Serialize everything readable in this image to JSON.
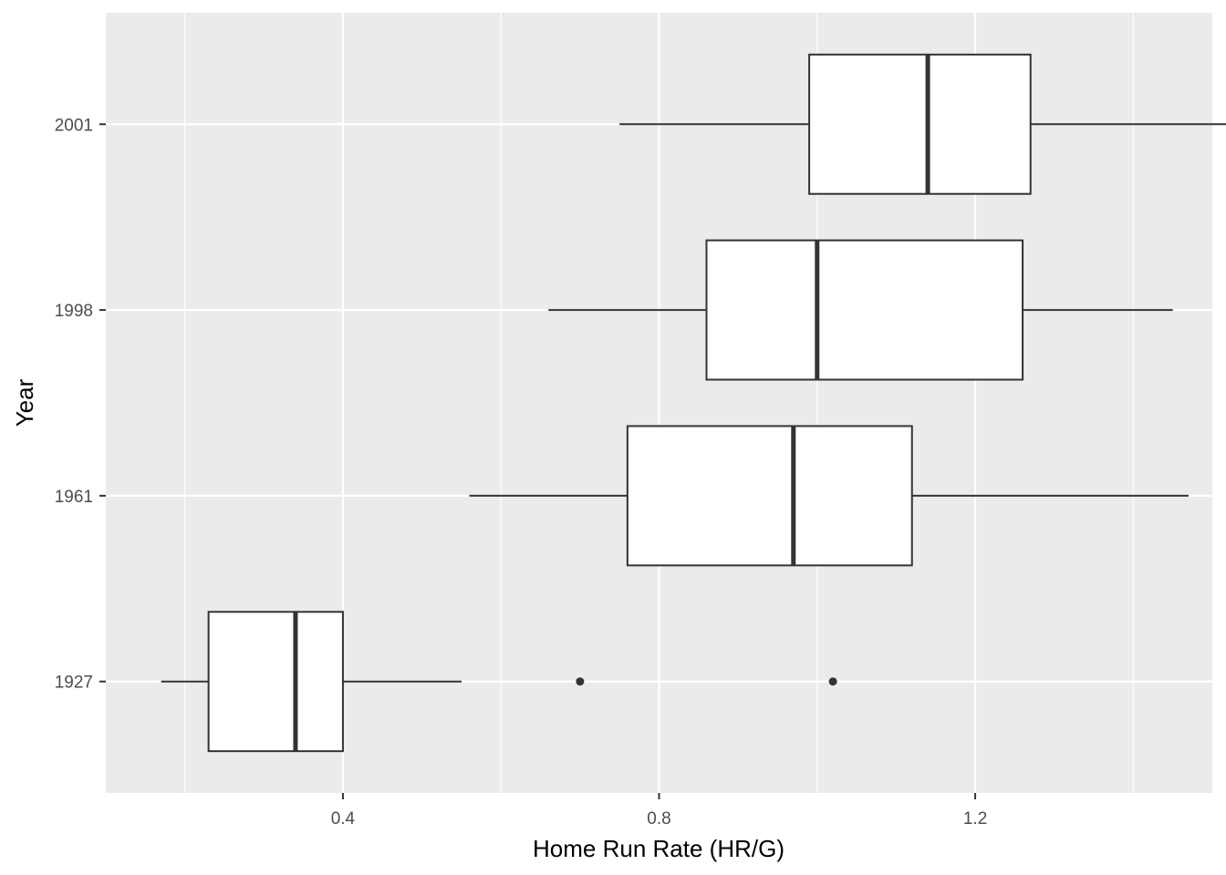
{
  "chart_data": {
    "type": "boxplot",
    "orientation": "horizontal",
    "title": "",
    "xlabel": "Home Run Rate (HR/G)",
    "ylabel": "Year",
    "xlim": [
      0.1,
      1.5
    ],
    "x_ticks": [
      0.4,
      0.8,
      1.2
    ],
    "x_minor_ticks": [
      0.2,
      0.6,
      1.0,
      1.4
    ],
    "x_tick_labels": [
      "0.4",
      "0.8",
      "1.2"
    ],
    "categories": [
      "1927",
      "1961",
      "1998",
      "2001"
    ],
    "boxes": [
      {
        "category": "1927",
        "whisker_low": 0.17,
        "q1": 0.23,
        "median": 0.34,
        "q3": 0.4,
        "whisker_high": 0.55,
        "outliers": [
          0.7,
          1.02
        ]
      },
      {
        "category": "1961",
        "whisker_low": 0.56,
        "q1": 0.76,
        "median": 0.97,
        "q3": 1.12,
        "whisker_high": 1.47,
        "outliers": []
      },
      {
        "category": "1998",
        "whisker_low": 0.66,
        "q1": 0.86,
        "median": 1.0,
        "q3": 1.26,
        "whisker_high": 1.45,
        "outliers": []
      },
      {
        "category": "2001",
        "whisker_low": 0.75,
        "q1": 0.99,
        "median": 1.14,
        "q3": 1.27,
        "whisker_high": 1.52,
        "outliers": []
      }
    ],
    "grid": true,
    "legend": "none",
    "colors": {
      "panel": "#ebebeb",
      "grid": "#ffffff",
      "box_fill": "#ffffff",
      "box_stroke": "#333333",
      "text": "#4d4d4d"
    }
  }
}
